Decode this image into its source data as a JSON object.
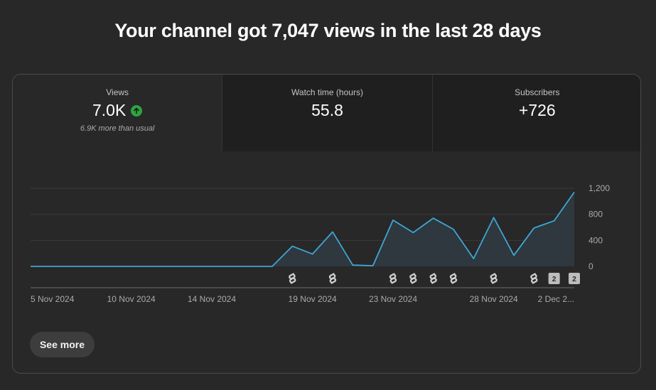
{
  "headline": "Your channel got 7,047 views in the last 28 days",
  "tabs": [
    {
      "label": "Views",
      "value": "7.0K",
      "note": "6.9K more than usual",
      "trend_icon": "arrow-up-circle-icon",
      "trend_color": "#2ba640"
    },
    {
      "label": "Watch time (hours)",
      "value": "55.8"
    },
    {
      "label": "Subscribers",
      "value": "+726"
    }
  ],
  "see_more_label": "See more",
  "colors": {
    "line": "#3ea6d6",
    "area": "#2f3a40"
  },
  "chart_data": {
    "type": "area",
    "x": [
      "5 Nov 2024",
      "6 Nov 2024",
      "7 Nov 2024",
      "8 Nov 2024",
      "9 Nov 2024",
      "10 Nov 2024",
      "11 Nov 2024",
      "12 Nov 2024",
      "13 Nov 2024",
      "14 Nov 2024",
      "15 Nov 2024",
      "16 Nov 2024",
      "17 Nov 2024",
      "18 Nov 2024",
      "19 Nov 2024",
      "20 Nov 2024",
      "21 Nov 2024",
      "22 Nov 2024",
      "23 Nov 2024",
      "24 Nov 2024",
      "25 Nov 2024",
      "26 Nov 2024",
      "27 Nov 2024",
      "28 Nov 2024",
      "29 Nov 2024",
      "30 Nov 2024",
      "1 Dec 2024",
      "2 Dec 2024"
    ],
    "series": [
      {
        "values": [
          0,
          0,
          0,
          0,
          0,
          0,
          0,
          0,
          0,
          0,
          0,
          0,
          0,
          310,
          190,
          530,
          20,
          10,
          710,
          520,
          740,
          570,
          120,
          750,
          170,
          590,
          700,
          1140
        ]
      }
    ],
    "x_tick_labels": [
      {
        "index": 0,
        "label": "5 Nov 2024"
      },
      {
        "index": 5,
        "label": "10 Nov 2024"
      },
      {
        "index": 9,
        "label": "14 Nov 2024"
      },
      {
        "index": 14,
        "label": "19 Nov 2024"
      },
      {
        "index": 18,
        "label": "23 Nov 2024"
      },
      {
        "index": 23,
        "label": "28 Nov 2024"
      },
      {
        "index": 27,
        "label": "2 Dec 2..."
      }
    ],
    "y_ticks": [
      "0",
      "400",
      "800",
      "1,200"
    ],
    "y_tick_values": [
      0,
      400,
      800,
      1200
    ],
    "ylim": [
      0,
      1200
    ],
    "grid": true,
    "y_axis_position": "right",
    "markers": [
      {
        "index": 13,
        "type": "shorts"
      },
      {
        "index": 15,
        "type": "shorts"
      },
      {
        "index": 18,
        "type": "shorts"
      },
      {
        "index": 19,
        "type": "shorts"
      },
      {
        "index": 20,
        "type": "shorts"
      },
      {
        "index": 21,
        "type": "shorts"
      },
      {
        "index": 23,
        "type": "shorts"
      },
      {
        "index": 25,
        "type": "shorts"
      },
      {
        "index": 26,
        "type": "count",
        "label": "2"
      },
      {
        "index": 27,
        "type": "count",
        "label": "2"
      }
    ]
  }
}
